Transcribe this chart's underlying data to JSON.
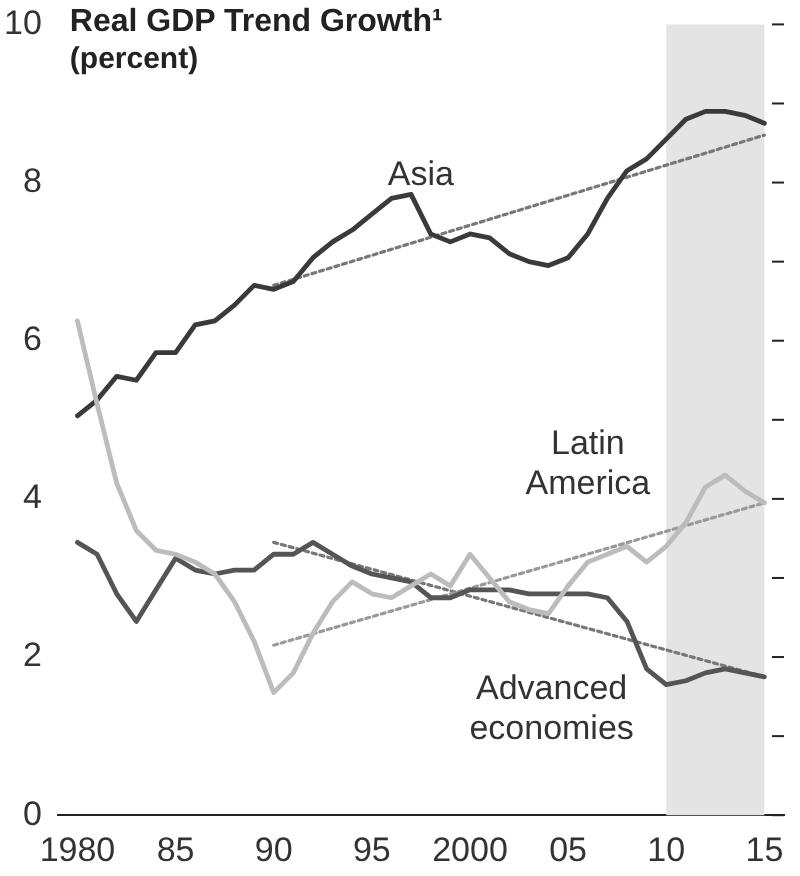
{
  "chart_data": {
    "type": "line",
    "title": "Real GDP Trend Growth¹",
    "subtitle": "(percent)",
    "x": [
      1980,
      1981,
      1982,
      1983,
      1984,
      1985,
      1986,
      1987,
      1988,
      1989,
      1990,
      1991,
      1992,
      1993,
      1994,
      1995,
      1996,
      1997,
      1998,
      1999,
      2000,
      2001,
      2002,
      2003,
      2004,
      2005,
      2006,
      2007,
      2008,
      2009,
      2010,
      2011,
      2012,
      2013,
      2014,
      2015
    ],
    "series": [
      {
        "name": "Latin America",
        "color": "#bcbcbc",
        "values": [
          6.25,
          5.2,
          4.2,
          3.6,
          3.35,
          3.3,
          3.2,
          3.05,
          2.7,
          2.2,
          1.55,
          1.8,
          2.3,
          2.7,
          2.95,
          2.8,
          2.75,
          2.9,
          3.05,
          2.9,
          3.3,
          3.0,
          2.7,
          2.6,
          2.55,
          2.9,
          3.2,
          3.3,
          3.4,
          3.2,
          3.4,
          3.7,
          4.15,
          4.3,
          4.1,
          3.95
        ]
      },
      {
        "name": "Asia",
        "color": "#3a3a3a",
        "values": [
          5.05,
          5.25,
          5.55,
          5.5,
          5.85,
          5.85,
          6.2,
          6.25,
          6.45,
          6.7,
          6.65,
          6.75,
          7.05,
          7.25,
          7.4,
          7.6,
          7.8,
          7.85,
          7.35,
          7.25,
          7.35,
          7.3,
          7.1,
          7.0,
          6.95,
          7.05,
          7.35,
          7.8,
          8.15,
          8.3,
          8.55,
          8.8,
          8.9,
          8.9,
          8.85,
          8.75
        ]
      },
      {
        "name": "Advanced economies",
        "color": "#555555",
        "values": [
          3.45,
          3.3,
          2.8,
          2.45,
          2.85,
          3.25,
          3.1,
          3.05,
          3.1,
          3.1,
          3.3,
          3.3,
          3.45,
          3.3,
          3.15,
          3.05,
          3.0,
          2.95,
          2.75,
          2.75,
          2.85,
          2.85,
          2.85,
          2.8,
          2.8,
          2.8,
          2.8,
          2.75,
          2.45,
          1.85,
          1.65,
          1.7,
          1.8,
          1.85,
          1.8,
          1.75
        ]
      },
      {
        "type": "line",
        "line_style": "dotted",
        "color": "#777777",
        "values": [
          null,
          null,
          null,
          null,
          null,
          null,
          null,
          null,
          null,
          null,
          6.7,
          null,
          null,
          null,
          null,
          null,
          null,
          null,
          null,
          null,
          null,
          null,
          null,
          null,
          null,
          null,
          null,
          null,
          null,
          null,
          null,
          null,
          null,
          null,
          null,
          8.6
        ]
      },
      {
        "type": "line",
        "line_style": "dotted",
        "color": "#999999",
        "values": [
          null,
          null,
          null,
          null,
          null,
          null,
          null,
          null,
          null,
          null,
          2.15,
          null,
          null,
          null,
          null,
          null,
          null,
          null,
          null,
          null,
          null,
          null,
          null,
          null,
          null,
          null,
          null,
          null,
          null,
          null,
          null,
          null,
          null,
          null,
          null,
          3.95
        ]
      },
      {
        "type": "line",
        "line_style": "dotted",
        "color": "#777777",
        "values": [
          null,
          null,
          null,
          null,
          null,
          null,
          null,
          null,
          null,
          null,
          3.45,
          null,
          null,
          null,
          null,
          null,
          null,
          null,
          null,
          null,
          null,
          null,
          null,
          null,
          null,
          null,
          null,
          null,
          null,
          null,
          null,
          null,
          null,
          null,
          null,
          1.75
        ]
      }
    ],
    "bands": [
      {
        "axis": "x",
        "from": 2010,
        "to": 2015,
        "color": "#e4e4e4"
      }
    ],
    "xlim": [
      1979,
      2016
    ],
    "xticks": [
      {
        "value": 1980,
        "label": "1980"
      },
      {
        "value": 1985,
        "label": "85"
      },
      {
        "value": 1990,
        "label": "90"
      },
      {
        "value": 1995,
        "label": "95"
      },
      {
        "value": 2000,
        "label": "2000"
      },
      {
        "value": 2005,
        "label": "05"
      },
      {
        "value": 2010,
        "label": "10"
      },
      {
        "value": 2015,
        "label": "15"
      }
    ],
    "ylim": [
      0,
      10
    ],
    "yticks": [
      0,
      {
        "value": 1,
        "label": null
      },
      2,
      {
        "value": 3,
        "label": null
      },
      4,
      {
        "value": 5,
        "label": null
      },
      6,
      {
        "value": 7,
        "label": null
      },
      8,
      {
        "value": 9,
        "label": null
      },
      10
    ],
    "grid": false,
    "legend": false,
    "marker": "none",
    "line_style": "solid"
  }
}
